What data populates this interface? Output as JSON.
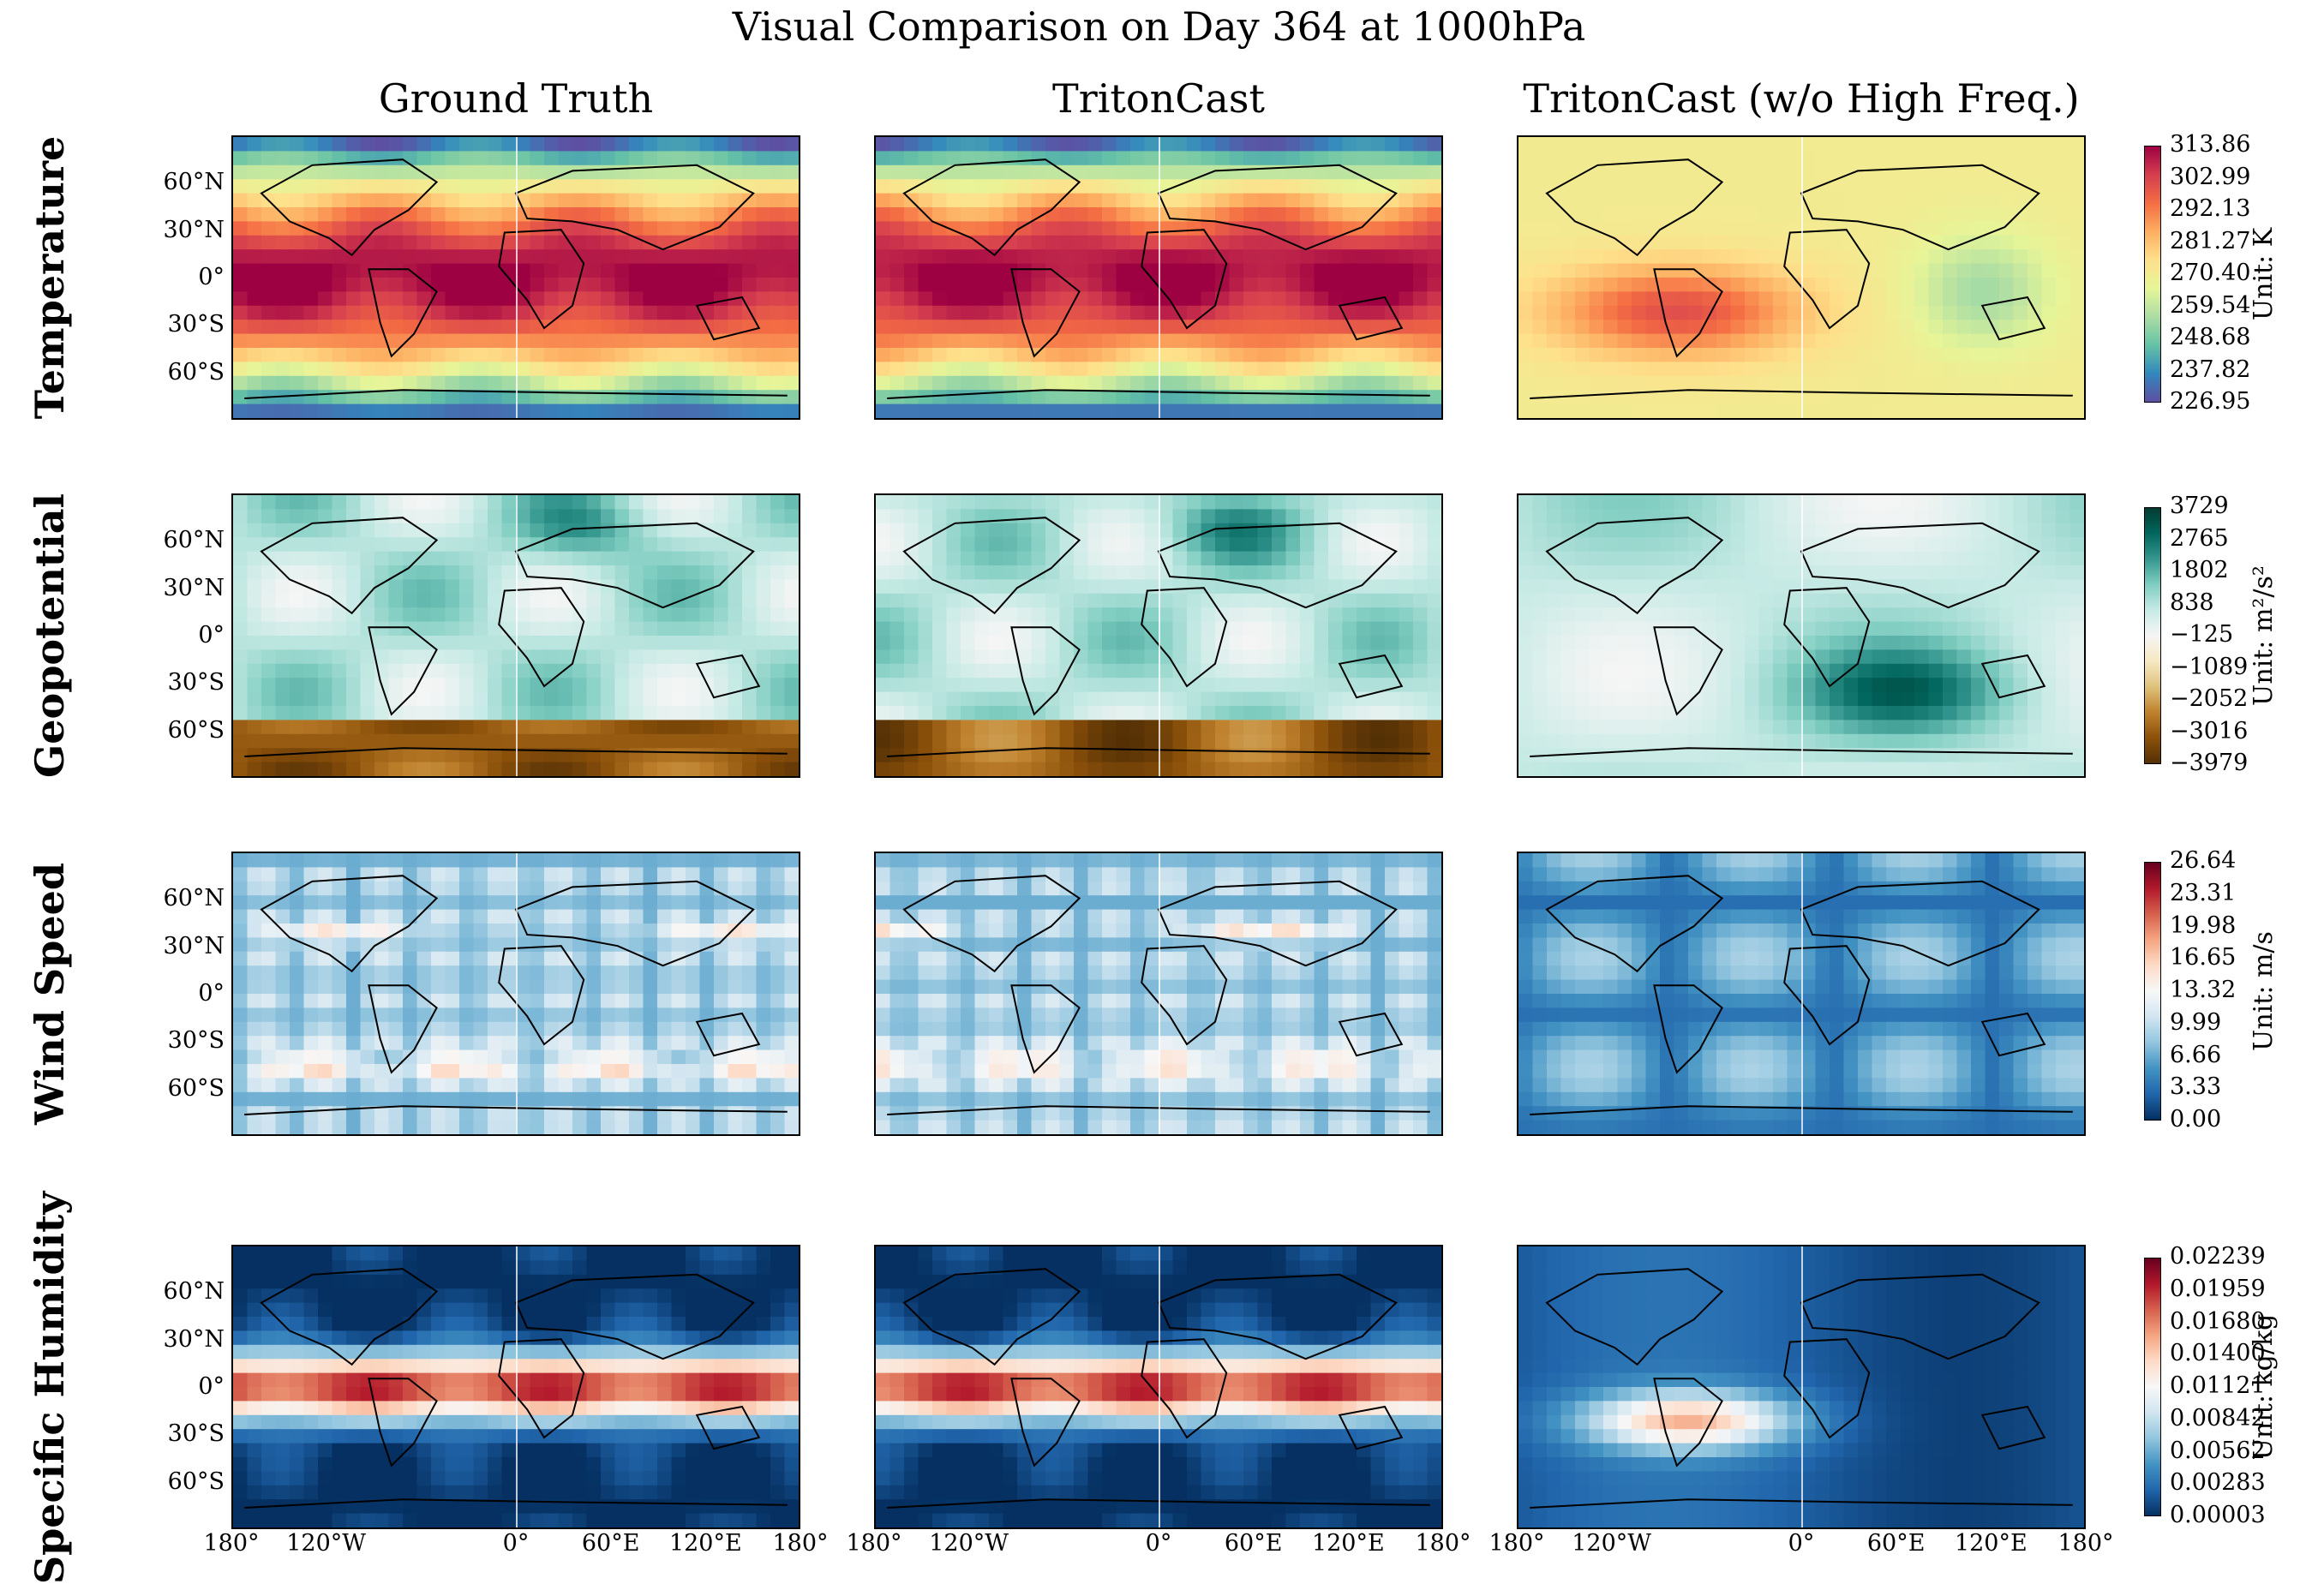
{
  "title": "Visual Comparison on Day 364 at 1000hPa",
  "columns": [
    "Ground Truth",
    "TritonCast",
    "TritonCast (w/o High Freq.)"
  ],
  "lat_ticks": [
    "60°N",
    "30°N",
    "0°",
    "30°S",
    "60°S"
  ],
  "lon_ticks": [
    "180°",
    "120°W",
    "0°",
    "60°E",
    "120°E",
    "180°"
  ],
  "chart_data": [
    {
      "type": "heatmap",
      "variable": "Temperature",
      "unit_label": "Unit: K",
      "colorbar_ticks": [
        "313.86",
        "302.99",
        "292.13",
        "281.27",
        "270.40",
        "259.54",
        "248.68",
        "237.82",
        "226.95"
      ],
      "vmin": 226.95,
      "vmax": 313.86,
      "colormap": [
        "#5e4fa2",
        "#3288bd",
        "#66c2a5",
        "#abdda4",
        "#e6f598",
        "#fee08b",
        "#fdae61",
        "#f46d43",
        "#d53e4f",
        "#9e0142"
      ],
      "panels": [
        "Ground Truth",
        "TritonCast",
        "TritonCast (w/o High Freq.)"
      ]
    },
    {
      "type": "heatmap",
      "variable": "Geopotential",
      "unit_label": "Unit: m²/s²",
      "colorbar_ticks": [
        "3729",
        "2765",
        "1802",
        "838",
        "−125",
        "−1089",
        "−2052",
        "−3016",
        "−3979"
      ],
      "vmin": -3979,
      "vmax": 3729,
      "colormap": [
        "#543005",
        "#8c510a",
        "#bf812d",
        "#dfc27d",
        "#f6e8c3",
        "#f5f5f5",
        "#c7eae5",
        "#80cdc1",
        "#35978f",
        "#01665e",
        "#003c30"
      ],
      "panels": [
        "Ground Truth",
        "TritonCast",
        "TritonCast (w/o High Freq.)"
      ]
    },
    {
      "type": "heatmap",
      "variable": "Wind Speed",
      "unit_label": "Unit: m/s",
      "colorbar_ticks": [
        "26.64",
        "23.31",
        "19.98",
        "16.65",
        "13.32",
        "9.99",
        "6.66",
        "3.33",
        "0.00"
      ],
      "vmin": 0.0,
      "vmax": 26.64,
      "colormap": [
        "#053061",
        "#2166ac",
        "#4393c3",
        "#92c5de",
        "#d1e5f0",
        "#f7f7f7",
        "#fddbc7",
        "#f4a582",
        "#d6604d",
        "#b2182b",
        "#67001f"
      ],
      "panels": [
        "Ground Truth",
        "TritonCast",
        "TritonCast (w/o High Freq.)"
      ]
    },
    {
      "type": "heatmap",
      "variable": "Specific Humidity",
      "unit_label": "Unit: kg/kg",
      "colorbar_ticks": [
        "0.02239",
        "0.01959",
        "0.01680",
        "0.01400",
        "0.01121",
        "0.00842",
        "0.00562",
        "0.00283",
        "0.00003"
      ],
      "vmin": 3e-05,
      "vmax": 0.02239,
      "colormap": [
        "#053061",
        "#2166ac",
        "#4393c3",
        "#92c5de",
        "#d1e5f0",
        "#f7f7f7",
        "#fddbc7",
        "#f4a582",
        "#d6604d",
        "#b2182b",
        "#67001f"
      ],
      "panels": [
        "Ground Truth",
        "TritonCast",
        "TritonCast (w/o High Freq.)"
      ]
    }
  ]
}
